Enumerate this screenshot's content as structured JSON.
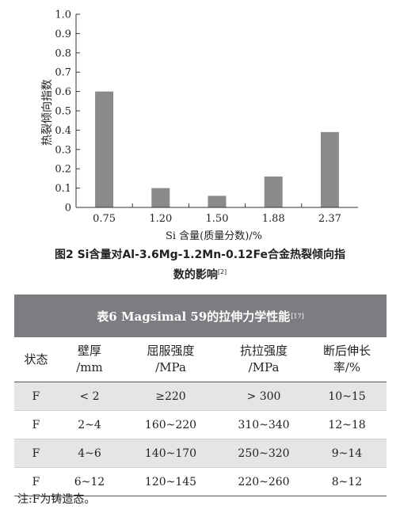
{
  "chart_data": {
    "type": "bar",
    "categories": [
      "0.75",
      "1.20",
      "1.50",
      "1.88",
      "2.37"
    ],
    "values": [
      0.6,
      0.1,
      0.06,
      0.16,
      0.39
    ],
    "xlabel": "Si 含量(质量分数)/%",
    "ylabel": "热裂倾向指数",
    "ylim": [
      0,
      1.0
    ],
    "yticks": [
      "0",
      "0.1",
      "0.2",
      "0.3",
      "0.4",
      "0.5",
      "0.6",
      "0.7",
      "0.8",
      "0.9",
      "1.0"
    ],
    "bar_color": "#8a8a8a"
  },
  "figure": {
    "caption_line1": "图2   Si含量对Al-3.6Mg-1.2Mn-0.12Fe合金热裂倾向指",
    "caption_line2": "数的影响",
    "caption_ref": "[2]"
  },
  "table": {
    "title": "表6    Magsimal 59的拉伸力学性能",
    "title_ref": "[17]",
    "headers": [
      [
        "状态",
        ""
      ],
      [
        "壁厚",
        "/mm"
      ],
      [
        "屈服强度",
        "/MPa"
      ],
      [
        "抗拉强度",
        "/MPa"
      ],
      [
        "断后伸长",
        "率/%"
      ]
    ],
    "rows": [
      [
        "F",
        "< 2",
        "≥220",
        "> 300",
        "10~15"
      ],
      [
        "F",
        "2~4",
        "160~220",
        "310~340",
        "12~18"
      ],
      [
        "F",
        "4~6",
        "140~170",
        "250~320",
        "9~14"
      ],
      [
        "F",
        "6~12",
        "120~145",
        "220~260",
        "8~12"
      ]
    ],
    "note": "注:F为铸造态。"
  }
}
